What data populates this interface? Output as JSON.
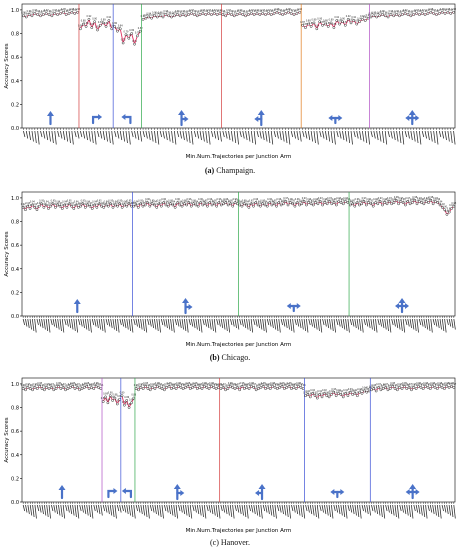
{
  "colors": {
    "line": "#e03060",
    "marker": "#111111",
    "arrow": "#4a72c8",
    "tick": "#333333",
    "dividers": [
      "#d43c3c",
      "#3a4fd6",
      "#2fa84a",
      "#e07a1a",
      "#b04fc4"
    ]
  },
  "charts": [
    {
      "caption_letter": "(a)",
      "caption_text": "Champaign.",
      "bold_letter": true,
      "chart_data": {
        "type": "line",
        "ylabel": "Accuracy Scores",
        "xlabel": "Min.Num.Trajectories per Junction Arm",
        "ylim": [
          0.0,
          1.05
        ],
        "yticks": [
          0.0,
          0.2,
          0.4,
          0.6,
          0.8,
          1.0
        ],
        "groups": [
          {
            "icon": "straight-arrow-icon",
            "n": 20,
            "values": [
              0.95,
              0.94,
              0.96,
              0.95,
              0.97,
              0.96,
              0.95,
              0.96,
              0.97,
              0.96,
              0.95,
              0.97,
              0.96,
              0.97,
              0.98,
              0.96,
              0.97,
              0.98,
              0.97,
              0.98
            ],
            "divider": 0
          },
          {
            "icon": "right-turn-arrow-icon",
            "n": 12,
            "values": [
              0.84,
              0.88,
              0.86,
              0.92,
              0.85,
              0.9,
              0.83,
              0.87,
              0.89,
              0.86,
              0.91,
              0.84
            ],
            "divider": 1
          },
          {
            "icon": "u-turn-arrow-icon",
            "n": 10,
            "values": [
              0.86,
              0.82,
              0.84,
              0.72,
              0.79,
              0.76,
              0.8,
              0.71,
              0.78,
              0.82
            ],
            "divider": 2
          },
          {
            "icon": "straight-right-arrow-icon",
            "n": 28,
            "values": [
              0.92,
              0.93,
              0.94,
              0.93,
              0.95,
              0.94,
              0.95,
              0.94,
              0.96,
              0.95,
              0.94,
              0.95,
              0.96,
              0.95,
              0.96,
              0.95,
              0.96,
              0.97,
              0.96,
              0.95,
              0.96,
              0.97,
              0.96,
              0.97,
              0.96,
              0.97,
              0.96,
              0.97
            ],
            "divider": 0
          },
          {
            "icon": "straight-left-right-arrow-icon",
            "n": 28,
            "values": [
              0.96,
              0.95,
              0.97,
              0.96,
              0.95,
              0.96,
              0.97,
              0.96,
              0.95,
              0.96,
              0.97,
              0.96,
              0.97,
              0.96,
              0.97,
              0.96,
              0.97,
              0.96,
              0.97,
              0.98,
              0.97,
              0.96,
              0.97,
              0.98,
              0.97,
              0.96,
              0.97,
              0.98
            ],
            "divider": 3
          },
          {
            "icon": "left-right-arrow-icon",
            "n": 24,
            "values": [
              0.87,
              0.85,
              0.88,
              0.86,
              0.89,
              0.84,
              0.9,
              0.87,
              0.88,
              0.86,
              0.89,
              0.85,
              0.91,
              0.88,
              0.9,
              0.87,
              0.92,
              0.89,
              0.91,
              0.88,
              0.9,
              0.92,
              0.91,
              0.93
            ],
            "divider": 4
          },
          {
            "icon": "four-way-arrow-icon",
            "n": 30,
            "values": [
              0.94,
              0.95,
              0.94,
              0.95,
              0.96,
              0.95,
              0.94,
              0.96,
              0.95,
              0.96,
              0.95,
              0.96,
              0.97,
              0.96,
              0.95,
              0.96,
              0.97,
              0.96,
              0.97,
              0.96,
              0.97,
              0.98,
              0.97,
              0.96,
              0.97,
              0.98,
              0.97,
              0.98,
              0.97,
              0.98
            ],
            "divider": -1
          }
        ]
      }
    },
    {
      "caption_letter": "(b)",
      "caption_text": "Chicago.",
      "bold_letter": true,
      "chart_data": {
        "type": "line",
        "ylabel": "Accuracy Scores",
        "xlabel": "Min.Num.Trajectories per Junction Arm",
        "ylim": [
          0.0,
          1.05
        ],
        "yticks": [
          0.0,
          0.2,
          0.4,
          0.6,
          0.8,
          1.0
        ],
        "groups": [
          {
            "icon": "straight-arrow-icon",
            "n": 48,
            "values": [
              0.92,
              0.9,
              0.93,
              0.91,
              0.94,
              0.92,
              0.9,
              0.93,
              0.95,
              0.92,
              0.94,
              0.91,
              0.93,
              0.95,
              0.92,
              0.94,
              0.93,
              0.91,
              0.94,
              0.92,
              0.95,
              0.93,
              0.91,
              0.94,
              0.92,
              0.93,
              0.95,
              0.92,
              0.94,
              0.93,
              0.91,
              0.94,
              0.92,
              0.95,
              0.93,
              0.92,
              0.94,
              0.93,
              0.95,
              0.92,
              0.94,
              0.93,
              0.95,
              0.92,
              0.94,
              0.93,
              0.95,
              0.93
            ],
            "divider": 1
          },
          {
            "icon": "straight-right-arrow-icon",
            "n": 46,
            "values": [
              0.93,
              0.94,
              0.92,
              0.95,
              0.93,
              0.94,
              0.96,
              0.93,
              0.95,
              0.94,
              0.92,
              0.95,
              0.93,
              0.96,
              0.94,
              0.93,
              0.95,
              0.94,
              0.92,
              0.96,
              0.94,
              0.93,
              0.95,
              0.94,
              0.96,
              0.93,
              0.95,
              0.94,
              0.93,
              0.96,
              0.94,
              0.95,
              0.93,
              0.96,
              0.94,
              0.95,
              0.93,
              0.96,
              0.94,
              0.95,
              0.96,
              0.94,
              0.95,
              0.93,
              0.96,
              0.95
            ],
            "divider": 2
          },
          {
            "icon": "left-right-arrow-icon",
            "n": 48,
            "values": [
              0.94,
              0.93,
              0.95,
              0.94,
              0.92,
              0.95,
              0.93,
              0.96,
              0.94,
              0.93,
              0.95,
              0.94,
              0.93,
              0.96,
              0.94,
              0.95,
              0.93,
              0.96,
              0.94,
              0.95,
              0.97,
              0.94,
              0.96,
              0.95,
              0.93,
              0.96,
              0.94,
              0.95,
              0.97,
              0.94,
              0.96,
              0.95,
              0.94,
              0.96,
              0.95,
              0.97,
              0.94,
              0.96,
              0.95,
              0.97,
              0.95,
              0.96,
              0.94,
              0.97,
              0.96,
              0.95,
              0.97,
              0.96
            ],
            "divider": 2
          },
          {
            "icon": "four-way-arrow-icon",
            "n": 46,
            "values": [
              0.94,
              0.95,
              0.93,
              0.96,
              0.94,
              0.95,
              0.97,
              0.94,
              0.96,
              0.95,
              0.93,
              0.96,
              0.95,
              0.97,
              0.94,
              0.96,
              0.95,
              0.97,
              0.95,
              0.96,
              0.98,
              0.95,
              0.97,
              0.96,
              0.94,
              0.97,
              0.95,
              0.96,
              0.98,
              0.95,
              0.97,
              0.96,
              0.95,
              0.97,
              0.96,
              0.98,
              0.95,
              0.97,
              0.96,
              0.94,
              0.92,
              0.9,
              0.86,
              0.88,
              0.91,
              0.93
            ],
            "divider": -1
          }
        ]
      }
    },
    {
      "caption_letter": "(c)",
      "caption_text": "Hanover.",
      "bold_letter": false,
      "chart_data": {
        "type": "line",
        "ylabel": "Accuracy Scores",
        "xlabel": "Min.Num.Trajectories per Junction Arm",
        "ylim": [
          0.0,
          1.05
        ],
        "yticks": [
          0.0,
          0.2,
          0.4,
          0.6,
          0.8,
          1.0
        ],
        "groups": [
          {
            "icon": "straight-arrow-icon",
            "n": 34,
            "values": [
              0.96,
              0.95,
              0.97,
              0.96,
              0.95,
              0.97,
              0.96,
              0.98,
              0.96,
              0.95,
              0.97,
              0.96,
              0.97,
              0.95,
              0.96,
              0.98,
              0.96,
              0.97,
              0.95,
              0.96,
              0.97,
              0.98,
              0.96,
              0.97,
              0.95,
              0.96,
              0.97,
              0.98,
              0.96,
              0.97,
              0.96,
              0.98,
              0.97,
              0.96
            ],
            "divider": 4
          },
          {
            "icon": "right-turn-arrow-icon",
            "n": 8,
            "values": [
              0.85,
              0.89,
              0.84,
              0.9,
              0.86,
              0.88,
              0.83,
              0.87
            ],
            "divider": 1
          },
          {
            "icon": "u-turn-arrow-icon",
            "n": 6,
            "values": [
              0.9,
              0.82,
              0.86,
              0.8,
              0.84,
              0.88
            ],
            "divider": 2
          },
          {
            "icon": "straight-right-arrow-icon",
            "n": 36,
            "values": [
              0.96,
              0.95,
              0.97,
              0.96,
              0.98,
              0.96,
              0.95,
              0.97,
              0.96,
              0.98,
              0.97,
              0.96,
              0.95,
              0.97,
              0.98,
              0.96,
              0.97,
              0.96,
              0.98,
              0.97,
              0.96,
              0.97,
              0.98,
              0.96,
              0.97,
              0.98,
              0.96,
              0.97,
              0.96,
              0.98,
              0.97,
              0.96,
              0.98,
              0.97,
              0.96,
              0.97
            ],
            "divider": 0
          },
          {
            "icon": "straight-left-right-arrow-icon",
            "n": 36,
            "values": [
              0.96,
              0.97,
              0.95,
              0.96,
              0.98,
              0.97,
              0.96,
              0.97,
              0.95,
              0.98,
              0.96,
              0.97,
              0.96,
              0.98,
              0.97,
              0.95,
              0.96,
              0.97,
              0.98,
              0.96,
              0.97,
              0.96,
              0.98,
              0.97,
              0.96,
              0.97,
              0.98,
              0.96,
              0.97,
              0.98,
              0.96,
              0.97,
              0.96,
              0.98,
              0.97,
              0.96
            ],
            "divider": 1
          },
          {
            "icon": "left-right-arrow-icon",
            "n": 28,
            "values": [
              0.9,
              0.91,
              0.89,
              0.92,
              0.9,
              0.88,
              0.91,
              0.89,
              0.92,
              0.9,
              0.89,
              0.91,
              0.93,
              0.9,
              0.92,
              0.91,
              0.89,
              0.92,
              0.9,
              0.93,
              0.91,
              0.92,
              0.9,
              0.93,
              0.92,
              0.94,
              0.93,
              0.94
            ],
            "divider": 1
          },
          {
            "icon": "four-way-arrow-icon",
            "n": 36,
            "values": [
              0.95,
              0.96,
              0.94,
              0.97,
              0.95,
              0.96,
              0.97,
              0.95,
              0.96,
              0.98,
              0.96,
              0.95,
              0.97,
              0.96,
              0.98,
              0.96,
              0.97,
              0.95,
              0.97,
              0.96,
              0.98,
              0.97,
              0.96,
              0.98,
              0.97,
              0.96,
              0.98,
              0.97,
              0.96,
              0.98,
              0.97,
              0.96,
              0.98,
              0.97,
              0.98,
              0.97
            ],
            "divider": -1
          }
        ]
      }
    }
  ]
}
